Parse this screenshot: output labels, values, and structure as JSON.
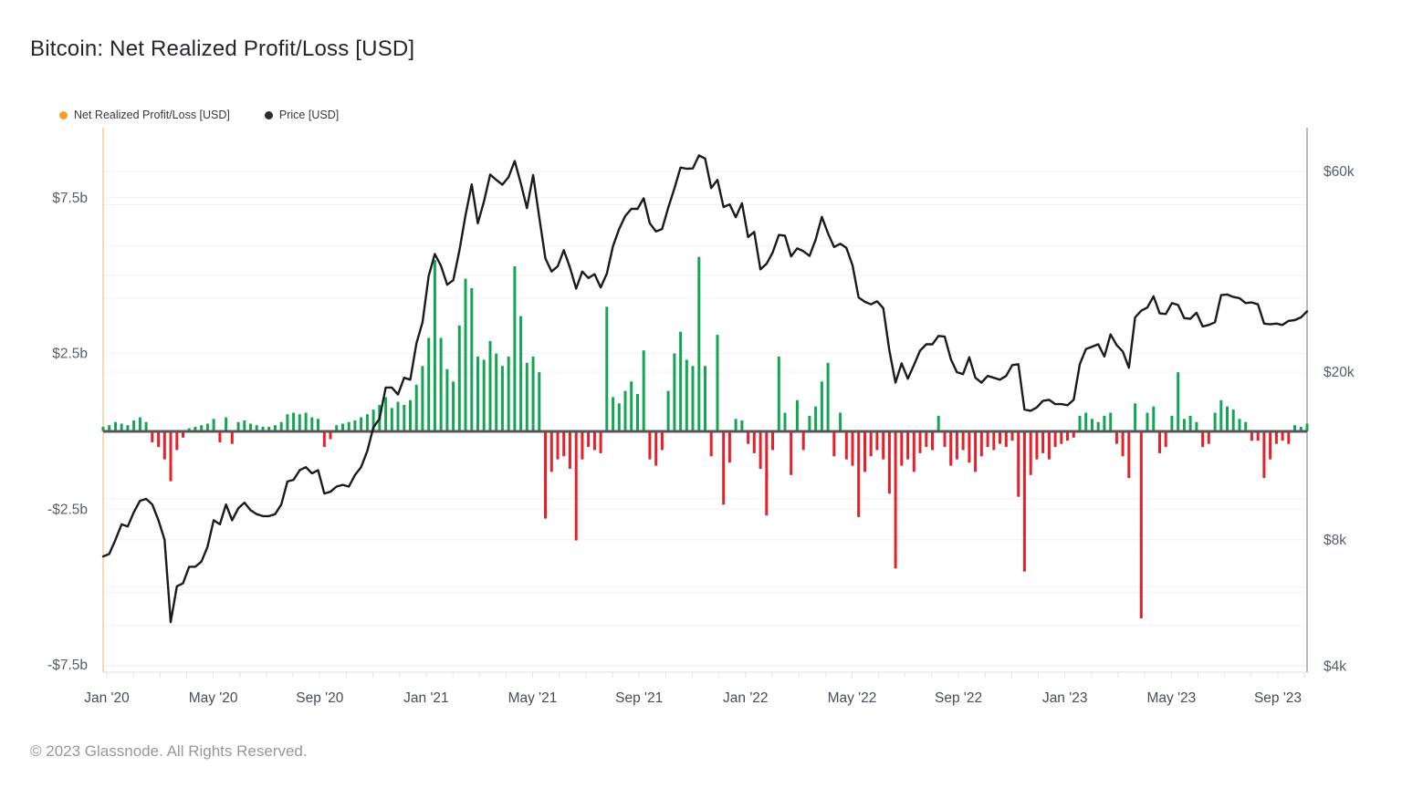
{
  "title": "Bitcoin: Net Realized Profit/Loss [USD]",
  "footer": "© 2023 Glassnode. All Rights Reserved.",
  "legend": [
    {
      "label": "Net Realized Profit/Loss [USD]",
      "dot_color": "#f59e2e"
    },
    {
      "label": "Price [USD]",
      "dot_color": "#2b2b30"
    }
  ],
  "colors": {
    "bar_positive": "#14a554",
    "bar_negative": "#e81e29",
    "price_line": "#1b1b1f",
    "zero_line": "#55555a",
    "left_spine": "#fbd9b4",
    "right_spine": "#a3a3a9",
    "gridline": "#f2f2f5",
    "bottom_axis": "#eaeaee",
    "minor_tick": "#e2e2e7"
  },
  "chart_data": {
    "type": "combo",
    "title": "Bitcoin: Net Realized Profit/Loss [USD]",
    "x_axis": {
      "start": "2019-12-29",
      "end": "2023-10-01",
      "resolution": "weekly",
      "tick_labels": [
        {
          "label": "Jan '20",
          "month": 0
        },
        {
          "label": "May '20",
          "month": 4
        },
        {
          "label": "Sep '20",
          "month": 8
        },
        {
          "label": "Jan '21",
          "month": 12
        },
        {
          "label": "May '21",
          "month": 16
        },
        {
          "label": "Sep '21",
          "month": 20
        },
        {
          "label": "Jan '22",
          "month": 24
        },
        {
          "label": "May '22",
          "month": 28
        },
        {
          "label": "Sep '22",
          "month": 32
        },
        {
          "label": "Jan '23",
          "month": 36
        },
        {
          "label": "May '23",
          "month": 40
        },
        {
          "label": "Sep '23",
          "month": 44
        }
      ],
      "minor_tick_month_count": 46
    },
    "y_axis_left": {
      "series": "Net Realized Profit/Loss [USD]",
      "unit": "billion USD",
      "scale": "linear",
      "ticks": [
        {
          "label": "$7.5b",
          "value": 7.5
        },
        {
          "label": "$2.5b",
          "value": 2.5
        },
        {
          "label": "-$2.5b",
          "value": -2.5
        },
        {
          "label": "-$7.5b",
          "value": -7.5
        }
      ],
      "gridlines": [
        7.5,
        5,
        2.5,
        -2.5,
        -5,
        -7.5
      ],
      "range_approx": [
        -9.7,
        9.7
      ]
    },
    "y_axis_right": {
      "series": "Price [USD]",
      "unit": "thousand USD",
      "scale": "log",
      "ticks": [
        {
          "label": "$60k",
          "value": 60
        },
        {
          "label": "$20k",
          "value": 20
        },
        {
          "label": "$8k",
          "value": 8
        },
        {
          "label": "$4k",
          "value": 4
        }
      ],
      "gridlines": [
        60,
        50,
        40,
        30,
        20,
        10,
        8,
        6,
        5,
        4
      ]
    },
    "series": [
      {
        "name": "Net Realized Profit/Loss [USD]",
        "type": "bar",
        "axis": "left",
        "unit": "billion USD",
        "color_positive": "#14a554",
        "color_negative": "#e81e29",
        "values": [
          0.15,
          0.2,
          0.3,
          0.25,
          0.2,
          0.35,
          0.45,
          0.3,
          -0.35,
          -0.5,
          -0.9,
          -1.6,
          -0.6,
          -0.2,
          0.1,
          0.15,
          0.2,
          0.25,
          0.4,
          -0.35,
          0.45,
          -0.4,
          0.3,
          0.35,
          0.25,
          0.2,
          0.15,
          0.15,
          0.2,
          0.3,
          0.55,
          0.6,
          0.55,
          0.6,
          0.45,
          0.4,
          -0.5,
          -0.25,
          0.2,
          0.25,
          0.3,
          0.35,
          0.45,
          0.55,
          0.7,
          0.85,
          1.1,
          0.75,
          0.95,
          0.85,
          1.0,
          1.5,
          2.1,
          3.0,
          5.5,
          3.0,
          2.0,
          1.6,
          3.4,
          4.9,
          4.6,
          2.4,
          2.3,
          2.9,
          2.5,
          2.1,
          2.4,
          5.3,
          3.7,
          2.2,
          2.4,
          1.9,
          -2.8,
          -1.3,
          -0.9,
          -0.8,
          -1.2,
          -3.5,
          -0.9,
          -0.5,
          -0.6,
          -0.7,
          4.0,
          1.1,
          0.9,
          1.3,
          1.6,
          1.2,
          2.6,
          -0.9,
          -1.1,
          -0.6,
          1.3,
          2.5,
          3.2,
          2.3,
          2.1,
          5.6,
          2.1,
          -0.8,
          3.1,
          -2.35,
          -1.0,
          0.4,
          0.35,
          -0.4,
          -0.7,
          -1.2,
          -2.7,
          -0.6,
          2.4,
          0.6,
          -1.4,
          1.0,
          -0.6,
          0.5,
          0.8,
          1.6,
          2.2,
          -0.8,
          0.6,
          -0.9,
          -1.1,
          -2.75,
          -1.3,
          -0.8,
          -0.6,
          -0.9,
          -2.0,
          -4.4,
          -1.1,
          -0.9,
          -1.3,
          -0.7,
          -0.5,
          -0.6,
          0.5,
          -0.5,
          -1.1,
          -0.9,
          -0.6,
          -1.0,
          -1.3,
          -0.8,
          -0.5,
          -0.6,
          -0.4,
          -0.5,
          -0.3,
          -2.1,
          -4.5,
          -1.4,
          -0.9,
          -0.7,
          -0.9,
          -0.5,
          -0.4,
          -0.3,
          -0.2,
          0.5,
          0.6,
          0.4,
          0.3,
          0.5,
          0.6,
          -0.4,
          -0.8,
          -1.5,
          0.9,
          -6.0,
          0.6,
          0.8,
          -0.7,
          -0.5,
          0.5,
          1.9,
          0.4,
          0.5,
          0.3,
          -0.5,
          -0.4,
          0.6,
          1.0,
          0.8,
          0.7,
          0.4,
          0.3,
          -0.3,
          -0.3,
          -1.5,
          -0.9,
          -0.4,
          -0.3,
          -0.4,
          0.2,
          0.15,
          0.25
        ]
      },
      {
        "name": "Price [USD]",
        "type": "line",
        "axis": "right",
        "unit": "thousand USD",
        "color": "#1b1b1f",
        "values": [
          7.3,
          7.4,
          8.0,
          8.7,
          8.6,
          9.3,
          9.9,
          10.0,
          9.7,
          8.9,
          8.0,
          5.1,
          6.2,
          6.3,
          6.9,
          6.9,
          7.1,
          7.7,
          8.9,
          8.7,
          9.7,
          8.9,
          9.5,
          9.8,
          9.4,
          9.2,
          9.1,
          9.1,
          9.2,
          9.7,
          11.0,
          11.1,
          11.7,
          11.9,
          11.5,
          11.7,
          10.3,
          10.4,
          10.7,
          10.8,
          10.7,
          11.4,
          11.9,
          13.0,
          14.8,
          15.5,
          18.4,
          18.4,
          17.7,
          19.4,
          19.2,
          23.4,
          26.3,
          33.9,
          38.2,
          35.8,
          32.3,
          33.1,
          38.9,
          47.2,
          55.9,
          45.2,
          50.9,
          59.0,
          57.3,
          55.8,
          58.2,
          63.5,
          56.2,
          49.1,
          58.8,
          46.7,
          37.3,
          34.7,
          35.7,
          39.0,
          35.5,
          31.6,
          34.7,
          33.5,
          34.2,
          31.8,
          34.3,
          39.9,
          43.8,
          47.0,
          48.9,
          48.9,
          51.8,
          45.2,
          43.2,
          43.8,
          49.2,
          54.7,
          61.3,
          60.9,
          61.0,
          65.5,
          64.4,
          54.8,
          57.3,
          49.4,
          50.1,
          46.7,
          50.4,
          41.9,
          43.1,
          35.1,
          36.2,
          38.5,
          42.4,
          42.2,
          37.7,
          39.4,
          38.8,
          37.8,
          41.3,
          46.8,
          42.8,
          39.7,
          40.4,
          39.5,
          35.9,
          30.1,
          29.4,
          29.0,
          29.5,
          28.4,
          22.5,
          18.9,
          21.0,
          19.3,
          20.8,
          22.5,
          23.3,
          23.3,
          24.4,
          24.3,
          21.5,
          20.0,
          19.8,
          21.7,
          19.4,
          18.9,
          19.6,
          19.4,
          19.2,
          19.6,
          20.8,
          20.9,
          16.3,
          16.2,
          16.5,
          17.1,
          17.2,
          16.8,
          16.8,
          16.7,
          17.2,
          20.9,
          22.7,
          23.0,
          23.3,
          21.8,
          24.6,
          23.2,
          22.4,
          20.5,
          27.0,
          28.0,
          28.5,
          30.3,
          27.6,
          27.5,
          29.2,
          28.9,
          26.9,
          26.8,
          27.7,
          25.7,
          25.9,
          26.3,
          30.5,
          30.6,
          30.2,
          30.0,
          29.2,
          29.3,
          29.0,
          26.1,
          26.0,
          26.1,
          25.9,
          26.5,
          26.6,
          27.0,
          27.9
        ]
      }
    ]
  }
}
